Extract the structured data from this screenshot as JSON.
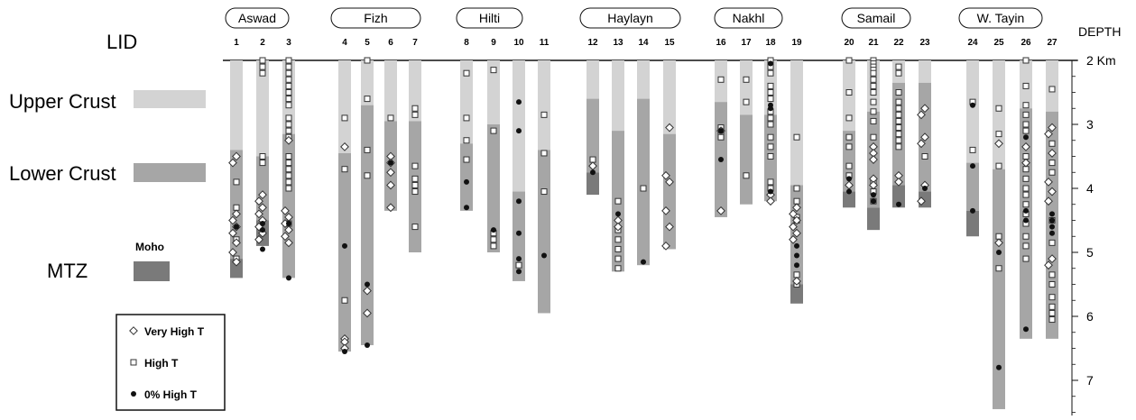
{
  "chart_data": {
    "type": "depth-strip-log",
    "depth_axis_title": "DEPTH",
    "depth_unit_label": "2 Km",
    "depth_range_km": [
      2,
      7.5
    ],
    "depth_ticks": [
      2,
      3,
      4,
      5,
      6,
      7
    ],
    "depth_tick_labels": [
      "2 Km",
      "3",
      "4",
      "5",
      "6",
      "7"
    ],
    "lid_label": "LID",
    "layers": [
      {
        "name": "Upper Crust",
        "color": "#d3d3d3"
      },
      {
        "name": "Lower Crust",
        "color": "#a6a6a6"
      },
      {
        "name": "MTZ",
        "color": "#7a7a7a",
        "extra_label": "Moho"
      }
    ],
    "legend": [
      {
        "symbol": "diamond",
        "label": "Very High  T"
      },
      {
        "symbol": "square",
        "label": "High T"
      },
      {
        "symbol": "dot",
        "label": "0% High T"
      }
    ],
    "groups": [
      {
        "name": "Aswad",
        "columns": [
          "1",
          "2",
          "3"
        ]
      },
      {
        "name": "Fizh",
        "columns": [
          "4",
          "5",
          "6",
          "7"
        ]
      },
      {
        "name": "Hilti",
        "columns": [
          "8",
          "9",
          "10",
          "11"
        ]
      },
      {
        "name": "Haylayn",
        "columns": [
          "12",
          "13",
          "14",
          "15"
        ]
      },
      {
        "name": "Nakhl",
        "columns": [
          "16",
          "17",
          "18",
          "19"
        ]
      },
      {
        "name": "Samail",
        "columns": [
          "20",
          "21",
          "22",
          "23"
        ]
      },
      {
        "name": "W. Tayin",
        "columns": [
          "24",
          "25",
          "26",
          "27"
        ]
      }
    ],
    "columns": [
      {
        "id": "1",
        "upper_bottom": 3.4,
        "lower_bottom": 5.1,
        "mtz_bottom": 5.4,
        "diamonds": [
          3.5,
          3.6,
          4.4,
          4.5,
          4.6,
          4.7,
          4.85,
          5.0,
          5.15
        ],
        "squares": [
          3.9,
          4.3,
          4.8,
          5.1
        ],
        "dots": [
          4.6
        ]
      },
      {
        "id": "2",
        "upper_bottom": 3.5,
        "lower_bottom": 4.5,
        "mtz_bottom": 4.9,
        "diamonds": [
          4.1,
          4.2,
          4.3,
          4.4,
          4.5,
          4.6,
          4.7,
          4.8
        ],
        "squares": [
          2.0,
          2.1,
          2.2,
          3.5,
          3.6
        ],
        "dots": [
          4.55,
          4.65,
          4.95
        ]
      },
      {
        "id": "3",
        "upper_bottom": 3.15,
        "lower_bottom": 5.4,
        "mtz_bottom": null,
        "diamonds": [
          3.25,
          4.35,
          4.45,
          4.55,
          4.65,
          4.75,
          4.85
        ],
        "squares": [
          2.0,
          2.1,
          2.2,
          2.3,
          2.4,
          2.5,
          2.6,
          2.7,
          2.9,
          3.0,
          3.1,
          3.2,
          3.5,
          3.6,
          3.7,
          3.8,
          3.9,
          4.0,
          4.55
        ],
        "dots": [
          4.55,
          5.4
        ]
      },
      {
        "id": "4",
        "upper_bottom": 3.45,
        "lower_bottom": 6.55,
        "mtz_bottom": null,
        "diamonds": [
          3.35,
          6.35,
          6.4,
          6.5
        ],
        "squares": [
          2.9,
          3.7,
          5.75
        ],
        "dots": [
          4.9,
          6.55
        ]
      },
      {
        "id": "5",
        "upper_bottom": 2.7,
        "lower_bottom": 6.45,
        "mtz_bottom": null,
        "diamonds": [
          5.6,
          5.95
        ],
        "squares": [
          2.0,
          2.6,
          3.4,
          3.8
        ],
        "dots": [
          5.5,
          6.45
        ]
      },
      {
        "id": "6",
        "upper_bottom": 2.95,
        "lower_bottom": 4.35,
        "mtz_bottom": null,
        "diamonds": [
          3.5,
          3.6,
          3.75,
          3.95,
          4.3
        ],
        "squares": [
          2.9
        ],
        "dots": [
          3.6
        ]
      },
      {
        "id": "7",
        "upper_bottom": 2.95,
        "lower_bottom": 5.0,
        "mtz_bottom": null,
        "diamonds": [],
        "squares": [
          2.75,
          2.85,
          3.65,
          3.85,
          3.95,
          4.05,
          4.6
        ],
        "dots": []
      },
      {
        "id": "8",
        "upper_bottom": 3.3,
        "lower_bottom": 4.35,
        "mtz_bottom": null,
        "diamonds": [],
        "squares": [
          2.2,
          2.9,
          3.25,
          3.55
        ],
        "dots": [
          3.9,
          4.3
        ]
      },
      {
        "id": "9",
        "upper_bottom": 3.0,
        "lower_bottom": 5.0,
        "mtz_bottom": null,
        "diamonds": [],
        "squares": [
          2.15,
          3.1,
          4.7,
          4.8,
          4.9
        ],
        "dots": [
          4.65
        ]
      },
      {
        "id": "10",
        "upper_bottom": 4.05,
        "lower_bottom": 5.45,
        "mtz_bottom": null,
        "diamonds": [],
        "squares": [
          5.2
        ],
        "dots": [
          2.65,
          3.1,
          4.2,
          4.7,
          5.1,
          5.3
        ]
      },
      {
        "id": "11",
        "upper_bottom": 3.4,
        "lower_bottom": 5.95,
        "mtz_bottom": null,
        "diamonds": [],
        "squares": [
          2.85,
          3.45,
          4.05
        ],
        "dots": [
          5.05
        ]
      },
      {
        "id": "12",
        "upper_bottom": 2.6,
        "lower_bottom": 3.75,
        "mtz_bottom": 4.1,
        "diamonds": [
          3.65
        ],
        "squares": [
          3.55
        ],
        "dots": [
          3.75
        ]
      },
      {
        "id": "13",
        "upper_bottom": 3.1,
        "lower_bottom": 5.3,
        "mtz_bottom": null,
        "diamonds": [
          4.5,
          4.6
        ],
        "squares": [
          4.2,
          4.65,
          4.8,
          4.95,
          5.1,
          5.25
        ],
        "dots": [
          4.4
        ]
      },
      {
        "id": "14",
        "upper_bottom": 2.6,
        "lower_bottom": 5.2,
        "mtz_bottom": null,
        "diamonds": [],
        "squares": [
          4.0
        ],
        "dots": [
          5.15
        ]
      },
      {
        "id": "15",
        "upper_bottom": 3.15,
        "lower_bottom": 4.95,
        "mtz_bottom": null,
        "diamonds": [
          3.05,
          3.8,
          3.9,
          4.35,
          4.6,
          4.9
        ],
        "squares": [],
        "dots": []
      },
      {
        "id": "16",
        "upper_bottom": 2.65,
        "lower_bottom": 4.45,
        "mtz_bottom": null,
        "diamonds": [
          3.1,
          4.35
        ],
        "squares": [
          2.3,
          3.05,
          3.15,
          3.2
        ],
        "dots": [
          3.1,
          3.55
        ]
      },
      {
        "id": "17",
        "upper_bottom": 2.85,
        "lower_bottom": 4.25,
        "mtz_bottom": null,
        "diamonds": [],
        "squares": [
          2.3,
          2.65,
          3.8
        ],
        "dots": []
      },
      {
        "id": "18",
        "upper_bottom": 2.85,
        "lower_bottom": 4.2,
        "mtz_bottom": null,
        "diamonds": [
          4.1,
          4.2
        ],
        "squares": [
          2.0,
          2.1,
          2.2,
          2.4,
          2.5,
          2.6,
          2.8,
          2.9,
          3.0,
          3.2,
          3.35,
          3.5,
          3.9,
          4.0
        ],
        "dots": [
          2.05,
          2.7,
          2.75,
          4.05
        ]
      },
      {
        "id": "19",
        "upper_bottom": 3.95,
        "lower_bottom": 5.5,
        "mtz_bottom": 5.8,
        "diamonds": [
          4.3,
          4.4,
          4.5,
          4.6,
          4.7,
          4.8,
          5.45
        ],
        "squares": [
          3.2,
          4.0,
          4.2,
          4.45,
          4.5,
          5.35,
          5.5
        ],
        "dots": [
          4.9,
          5.05,
          5.2
        ]
      },
      {
        "id": "20",
        "upper_bottom": 3.1,
        "lower_bottom": 4.05,
        "mtz_bottom": 4.3,
        "diamonds": [
          3.95
        ],
        "squares": [
          2.0,
          2.5,
          2.9,
          3.2,
          3.35,
          3.65,
          3.8
        ],
        "dots": [
          3.85,
          4.05
        ]
      },
      {
        "id": "21",
        "upper_bottom": 2.8,
        "lower_bottom": 4.3,
        "mtz_bottom": 4.65,
        "diamonds": [
          3.35,
          3.45,
          3.55,
          3.85,
          3.95
        ],
        "squares": [
          2.0,
          2.05,
          2.1,
          2.15,
          2.2,
          2.3,
          2.4,
          2.5,
          2.65,
          2.8,
          2.95,
          3.2,
          3.9,
          4.05,
          4.2
        ],
        "dots": [
          4.1,
          4.2
        ]
      },
      {
        "id": "22",
        "upper_bottom": 2.35,
        "lower_bottom": 3.95,
        "mtz_bottom": 4.3,
        "diamonds": [
          3.8,
          3.9
        ],
        "squares": [
          2.1,
          2.2,
          2.5,
          2.65,
          2.75,
          2.85,
          2.95,
          3.05,
          3.15,
          3.25,
          3.35
        ],
        "dots": [
          4.25
        ]
      },
      {
        "id": "23",
        "upper_bottom": 2.35,
        "lower_bottom": 4.05,
        "mtz_bottom": 4.3,
        "diamonds": [
          2.75,
          2.85,
          3.2,
          3.3,
          3.95,
          4.2
        ],
        "squares": [
          3.5
        ],
        "dots": [
          4.0
        ]
      },
      {
        "id": "24",
        "upper_bottom": 3.6,
        "lower_bottom": 4.35,
        "mtz_bottom": 4.75,
        "diamonds": [],
        "squares": [
          2.65,
          3.4
        ],
        "dots": [
          2.7,
          3.65,
          4.35
        ]
      },
      {
        "id": "25",
        "upper_bottom": 3.7,
        "lower_bottom": 7.45,
        "mtz_bottom": null,
        "diamonds": [
          3.3,
          4.85
        ],
        "squares": [
          2.75,
          3.15,
          3.65,
          4.75,
          5.25
        ],
        "dots": [
          5.0,
          6.8
        ]
      },
      {
        "id": "26",
        "upper_bottom": 2.75,
        "lower_bottom": 6.35,
        "mtz_bottom": null,
        "diamonds": [
          3.35,
          3.6
        ],
        "squares": [
          2.0,
          2.4,
          2.7,
          2.85,
          3.0,
          3.1,
          3.5,
          3.7,
          3.85,
          4.0,
          4.1,
          4.25,
          4.4,
          4.55,
          4.75,
          4.9,
          5.1
        ],
        "dots": [
          3.2,
          4.35,
          4.5,
          6.2
        ]
      },
      {
        "id": "27",
        "upper_bottom": 2.8,
        "lower_bottom": 6.35,
        "mtz_bottom": null,
        "diamonds": [
          3.05,
          3.15,
          3.45,
          3.9,
          4.05,
          4.2,
          5.1,
          5.2
        ],
        "squares": [
          2.45,
          3.3,
          3.6,
          3.75,
          4.5,
          4.85,
          5.35,
          5.5,
          5.7,
          5.85,
          5.95,
          6.05
        ],
        "dots": [
          4.4,
          4.5,
          4.6,
          4.7
        ]
      }
    ]
  }
}
